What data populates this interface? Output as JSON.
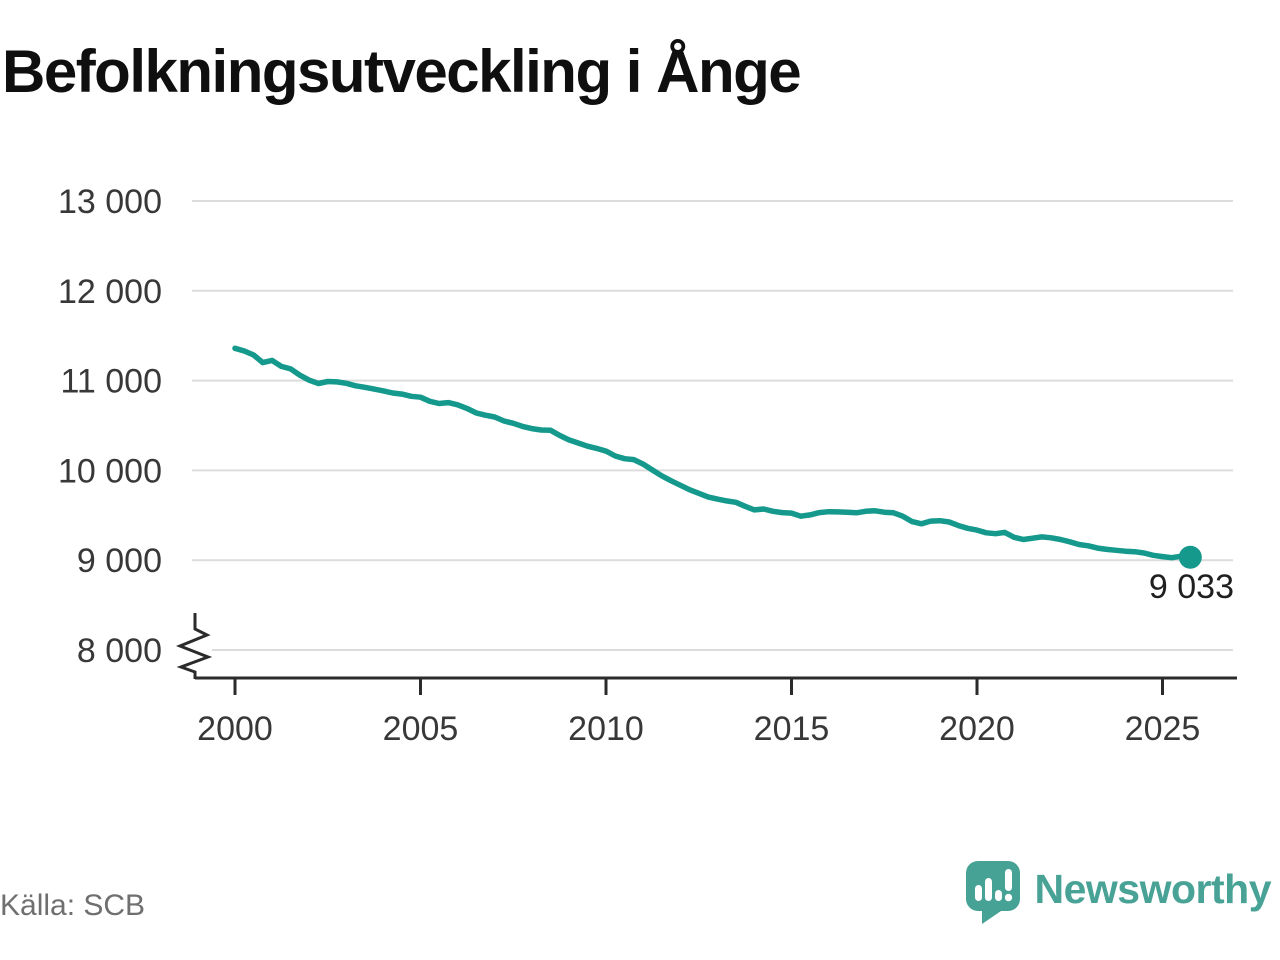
{
  "title": "Befolkningsutveckling i Ånge",
  "source": "Källa: SCB",
  "branding": {
    "logo_text": "Newsworthy",
    "logo_mark": "speech-bubble-bar-chart-exclamation",
    "brand_color": "#48a295"
  },
  "chart_data": {
    "type": "line",
    "title": "Befolkningsutveckling i Ånge",
    "xlabel": "",
    "ylabel": "",
    "grid": "horizontal",
    "legend": "none",
    "axis_break_at_bottom": true,
    "ylim": [
      8000,
      13000
    ],
    "xlim": [
      2000,
      2026
    ],
    "line_color": "#14998c",
    "grid_color": "#dcdcdc",
    "axis_color": "#2b2b2b",
    "label_color": "#383838",
    "end_label": "9 033",
    "end_value": 9033,
    "y_ticks": [
      {
        "value": 13000,
        "label": "13 000"
      },
      {
        "value": 12000,
        "label": "12 000"
      },
      {
        "value": 11000,
        "label": "11 000"
      },
      {
        "value": 10000,
        "label": "10 000"
      },
      {
        "value": 9000,
        "label": "9 000"
      },
      {
        "value": 8000,
        "label": "8 000"
      }
    ],
    "x_ticks": [
      {
        "value": 2000,
        "label": "2000"
      },
      {
        "value": 2005,
        "label": "2005"
      },
      {
        "value": 2010,
        "label": "2010"
      },
      {
        "value": 2015,
        "label": "2015"
      },
      {
        "value": 2020,
        "label": "2020"
      },
      {
        "value": 2025,
        "label": "2025"
      }
    ],
    "series": [
      {
        "color": "#14998c",
        "x": [
          2000.0,
          2000.25,
          2000.5,
          2000.75,
          2001.0,
          2001.25,
          2001.5,
          2001.75,
          2002.0,
          2002.25,
          2002.5,
          2002.75,
          2003.0,
          2003.25,
          2003.5,
          2003.75,
          2004.0,
          2004.25,
          2004.5,
          2004.75,
          2005.0,
          2005.25,
          2005.5,
          2005.75,
          2006.0,
          2006.25,
          2006.5,
          2006.75,
          2007.0,
          2007.25,
          2007.5,
          2007.75,
          2008.0,
          2008.25,
          2008.5,
          2008.75,
          2009.0,
          2009.25,
          2009.5,
          2009.75,
          2010.0,
          2010.25,
          2010.5,
          2010.75,
          2011.0,
          2011.25,
          2011.5,
          2011.75,
          2012.0,
          2012.25,
          2012.5,
          2012.75,
          2013.0,
          2013.25,
          2013.5,
          2013.75,
          2014.0,
          2014.25,
          2014.5,
          2014.75,
          2015.0,
          2015.25,
          2015.5,
          2015.75,
          2016.0,
          2016.25,
          2016.5,
          2016.75,
          2017.0,
          2017.25,
          2017.5,
          2017.75,
          2018.0,
          2018.25,
          2018.5,
          2018.75,
          2019.0,
          2019.25,
          2019.5,
          2019.75,
          2020.0,
          2020.25,
          2020.5,
          2020.75,
          2021.0,
          2021.25,
          2021.5,
          2021.75,
          2022.0,
          2022.25,
          2022.5,
          2022.75,
          2023.0,
          2023.25,
          2023.5,
          2023.75,
          2024.0,
          2024.25,
          2024.5,
          2024.75,
          2025.0,
          2025.25,
          2025.5,
          2025.75
        ],
        "values": [
          11360,
          11330,
          11285,
          11200,
          11225,
          11158,
          11130,
          11060,
          11005,
          10968,
          10990,
          10985,
          10970,
          10942,
          10925,
          10905,
          10885,
          10862,
          10850,
          10825,
          10815,
          10770,
          10745,
          10755,
          10730,
          10690,
          10640,
          10615,
          10595,
          10550,
          10525,
          10490,
          10465,
          10450,
          10448,
          10390,
          10340,
          10305,
          10270,
          10245,
          10215,
          10160,
          10130,
          10120,
          10070,
          10005,
          9940,
          9885,
          9835,
          9785,
          9745,
          9705,
          9680,
          9660,
          9645,
          9600,
          9560,
          9570,
          9545,
          9530,
          9525,
          9490,
          9505,
          9530,
          9540,
          9538,
          9535,
          9528,
          9545,
          9550,
          9535,
          9528,
          9490,
          9430,
          9405,
          9435,
          9440,
          9425,
          9385,
          9355,
          9335,
          9305,
          9295,
          9310,
          9255,
          9230,
          9245,
          9260,
          9250,
          9230,
          9205,
          9175,
          9160,
          9135,
          9120,
          9110,
          9100,
          9095,
          9080,
          9055,
          9040,
          9028,
          9045,
          9033
        ]
      }
    ]
  }
}
